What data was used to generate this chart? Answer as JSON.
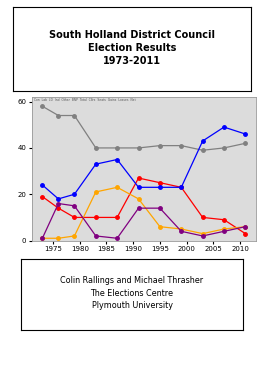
{
  "title": "South Holland District Council\nElection Results\n1973-2011",
  "footer_lines": [
    "Colin Rallings and Michael Thrasher",
    "The Elections Centre",
    "Plymouth University"
  ],
  "years_con": [
    1973,
    1976,
    1979,
    1983,
    1987,
    1991,
    1995,
    1999,
    2003,
    2007,
    2011
  ],
  "con_data": [
    58,
    54,
    54,
    40,
    40,
    40,
    41,
    41,
    39,
    40,
    42
  ],
  "years_lab": [
    1973,
    1976,
    1979,
    1983,
    1987,
    1991,
    1995,
    1999,
    2003,
    2007,
    2011
  ],
  "lab_data": [
    19,
    14,
    10,
    10,
    10,
    27,
    25,
    23,
    10,
    9,
    3
  ],
  "years_ld": [
    1973,
    1976,
    1979,
    1983,
    1987,
    1991,
    1995,
    1999,
    2003,
    2007,
    2011
  ],
  "ld_data": [
    24,
    18,
    20,
    33,
    35,
    23,
    23,
    23,
    43,
    49,
    46
  ],
  "years_ind": [
    1973,
    1976,
    1979,
    1983,
    1987,
    1991,
    1995,
    1999,
    2003,
    2007,
    2011
  ],
  "ind_data": [
    1,
    1,
    2,
    21,
    23,
    18,
    6,
    5,
    3,
    5,
    6
  ],
  "years_oth": [
    1973,
    1976,
    1979,
    1983,
    1987,
    1991,
    1995,
    1999,
    2003,
    2007,
    2011
  ],
  "oth_data": [
    1,
    16,
    15,
    2,
    1,
    14,
    14,
    4,
    2,
    4,
    6
  ],
  "con_color": "#808080",
  "lab_color": "#FF0000",
  "ld_color": "#0000FF",
  "ind_color": "#FFA500",
  "oth_color": "#800080",
  "ylim": [
    0,
    62
  ],
  "yticks": [
    0,
    20,
    40,
    60
  ],
  "chart_bg": "#DCDCDC",
  "fig_bg": "#FFFFFF"
}
